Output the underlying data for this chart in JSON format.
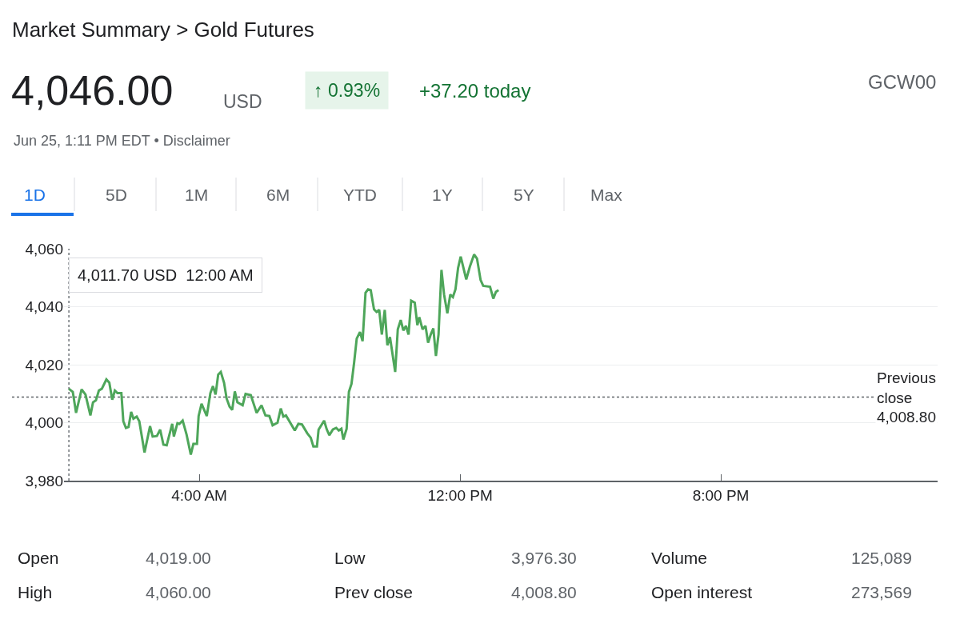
{
  "chart_data": {
    "type": "line",
    "title": "Market Summary > Gold Futures",
    "x": [
      0,
      0.12,
      0.22,
      0.39,
      0.51,
      0.66,
      0.74,
      0.83,
      0.92,
      1.01,
      1.15,
      1.24,
      1.33,
      1.41,
      1.49,
      1.61,
      1.67,
      1.75,
      1.83,
      1.91,
      1.98,
      2.08,
      2.16,
      2.32,
      2.49,
      2.57,
      2.7,
      2.8,
      2.9,
      3.0,
      3.17,
      3.22,
      3.33,
      3.39,
      3.49,
      3.61,
      3.74,
      3.82,
      3.93,
      3.98,
      4.07,
      4.23,
      4.34,
      4.42,
      4.5,
      4.58,
      4.66,
      4.76,
      4.84,
      4.93,
      5.01,
      5.09,
      5.17,
      5.33,
      5.42,
      5.58,
      5.76,
      5.91,
      6.03,
      6.15,
      6.25,
      6.4,
      6.5,
      6.58,
      6.66,
      6.93,
      7.04,
      7.15,
      7.31,
      7.42,
      7.5,
      7.61,
      7.66,
      7.83,
      7.91,
      7.99,
      8.1,
      8.2,
      8.28,
      8.36,
      8.42,
      8.52,
      8.59,
      8.67,
      8.75,
      8.83,
      8.93,
      9.01,
      9.1,
      9.18,
      9.26,
      9.36,
      9.44,
      9.52,
      9.6,
      9.69,
      9.77,
      9.85,
      10.01,
      10.09,
      10.18,
      10.26,
      10.34,
      10.42,
      10.5,
      10.61,
      10.69,
      10.75,
      10.85,
      10.94,
      11.02,
      11.1,
      11.18,
      11.26,
      11.34,
      11.43,
      11.51,
      11.61,
      11.7,
      11.78,
      11.86,
      11.94,
      12.02,
      12.19,
      12.3,
      12.43,
      12.52,
      12.63,
      12.71,
      12.92,
      13.02,
      13.1,
      13.18
    ],
    "series": [
      {
        "color": "#4ea65a",
        "values": [
          4011.7,
          4010.6,
          4003.4,
          4011.5,
          4009.7,
          4002.5,
          4007,
          4007.7,
          4011.1,
          4011.7,
          4014.9,
          4013.8,
          4007.9,
          4011.1,
          4010.2,
          4010.2,
          4000.5,
          3998.2,
          3998.5,
          4003.7,
          4001.4,
          4002.1,
          4000.5,
          3989.7,
          3998.8,
          3995.2,
          3995.4,
          3997.6,
          3992.4,
          3992.2,
          3999.6,
          3995.2,
          3999.8,
          3999.6,
          4000.7,
          3995.9,
          3989,
          3992.7,
          3992.7,
          4002.3,
          4006.5,
          4002.3,
          4010.2,
          4012.6,
          4009.7,
          4016.6,
          4017.5,
          4013.8,
          4008.3,
          4005.5,
          4004.4,
          4010.8,
          4007,
          4006,
          4009.9,
          4009.5,
          4003.4,
          4006,
          4002.5,
          4002.3,
          3999.1,
          4000,
          4004.9,
          4002.1,
          4002.5,
          3997.3,
          3999.6,
          3999.4,
          3996.4,
          3994.8,
          3991.8,
          3991.8,
          3997.6,
          4000.7,
          3997.7,
          3995.7,
          3997.7,
          3998.2,
          3997.3,
          3997.9,
          3994.2,
          3997.9,
          4010.6,
          4013.4,
          4020.7,
          4029,
          4031.3,
          4028.1,
          4044.8,
          4046,
          4045.7,
          4039.1,
          4038.2,
          4038.9,
          4030.4,
          4038.9,
          4026.7,
          4029.5,
          4017.5,
          4032.2,
          4035.4,
          4031.8,
          4033.4,
          4030.4,
          4042.1,
          4041.4,
          4033.6,
          4036.4,
          4032.2,
          4033.4,
          4027.6,
          4030.4,
          4032.5,
          4023,
          4030.4,
          4052.7,
          4044.2,
          4037.7,
          4044.2,
          4043.3,
          4046,
          4053.4,
          4057.3,
          4049.4,
          4053.8,
          4058,
          4056.6,
          4049.2,
          4047.2,
          4046.9,
          4042.8,
          4045.1,
          4045.7
        ]
      }
    ],
    "xlim": [
      -0.15,
      26.65
    ],
    "xticks": [
      {
        "value": 4,
        "label": "4:00 AM"
      },
      {
        "value": 12,
        "label": "12:00 PM"
      },
      {
        "value": 20,
        "label": "8:00 PM"
      }
    ],
    "ylim": [
      3980,
      4060
    ],
    "yticks": [
      {
        "value": 3980,
        "label": "3,980"
      },
      {
        "value": 4000,
        "label": "4,000"
      },
      {
        "value": 4020,
        "label": "4,020"
      },
      {
        "value": 4040,
        "label": "4,040"
      },
      {
        "value": 4060,
        "label": "4,060"
      }
    ],
    "grid": "y",
    "marker": "none",
    "line_style": "solid",
    "ref_lines": [
      {
        "axis": "y",
        "value": 4008.8,
        "label": "Previous\nclose\n4,008.80",
        "color": "#5f6368",
        "line_style": "dotted"
      },
      {
        "axis": "x",
        "value": 0,
        "label": null,
        "color": "#70757a",
        "line_style": "dotted"
      }
    ],
    "annotations": [
      "4,046.00",
      "USD",
      "↑ 0.93%",
      "+37.20 today",
      "GCW00",
      "Jun 25, 1:11 PM EDT • Disclaimer",
      "1D",
      "5D",
      "1M",
      "6M",
      "YTD",
      "1Y",
      "5Y",
      "Max",
      "Open",
      "4,019.00",
      "Low",
      "3,976.30",
      "Volume",
      "125,089",
      "High",
      "4,060.00",
      "Prev close",
      "4,008.80",
      "Open interest",
      "273,569",
      "4,011.70 USD  12:00 AM"
    ]
  }
}
